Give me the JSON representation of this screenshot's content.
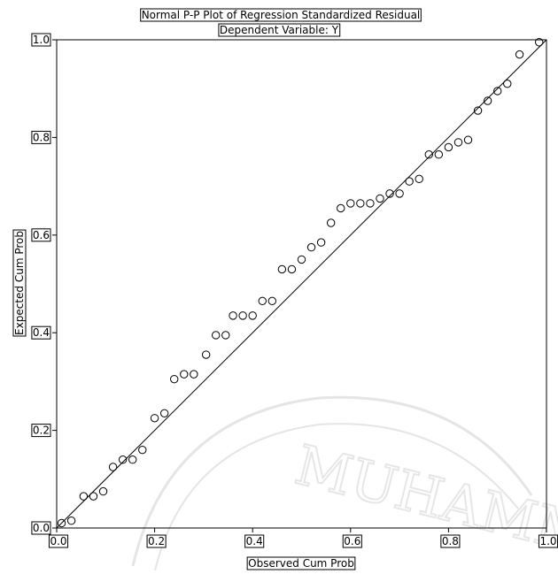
{
  "chart_data": {
    "type": "scatter",
    "title": "Normal P-P Plot of Regression Standardized Residual",
    "subtitle": "Dependent Variable: Y",
    "xlabel": "Observed Cum Prob",
    "ylabel": "Expected Cum Prob",
    "xlim": [
      0,
      1
    ],
    "ylim": [
      0,
      1
    ],
    "x_ticks": [
      "0.0",
      "0.2",
      "0.4",
      "0.6",
      "0.8",
      "1.0"
    ],
    "y_ticks": [
      "0.0",
      "0.2",
      "0.4",
      "0.6",
      "0.8",
      "1.0"
    ],
    "grid": false,
    "reference_line": [
      [
        0,
        0
      ],
      [
        1,
        1
      ]
    ],
    "points": [
      [
        0.01,
        0.01
      ],
      [
        0.03,
        0.015
      ],
      [
        0.055,
        0.065
      ],
      [
        0.075,
        0.065
      ],
      [
        0.095,
        0.075
      ],
      [
        0.115,
        0.125
      ],
      [
        0.135,
        0.14
      ],
      [
        0.155,
        0.14
      ],
      [
        0.175,
        0.16
      ],
      [
        0.2,
        0.225
      ],
      [
        0.22,
        0.235
      ],
      [
        0.24,
        0.305
      ],
      [
        0.26,
        0.315
      ],
      [
        0.28,
        0.315
      ],
      [
        0.305,
        0.355
      ],
      [
        0.325,
        0.395
      ],
      [
        0.345,
        0.395
      ],
      [
        0.36,
        0.435
      ],
      [
        0.38,
        0.435
      ],
      [
        0.4,
        0.435
      ],
      [
        0.42,
        0.465
      ],
      [
        0.44,
        0.465
      ],
      [
        0.46,
        0.53
      ],
      [
        0.48,
        0.53
      ],
      [
        0.5,
        0.55
      ],
      [
        0.52,
        0.575
      ],
      [
        0.54,
        0.585
      ],
      [
        0.56,
        0.625
      ],
      [
        0.58,
        0.655
      ],
      [
        0.6,
        0.665
      ],
      [
        0.62,
        0.665
      ],
      [
        0.64,
        0.665
      ],
      [
        0.66,
        0.675
      ],
      [
        0.68,
        0.685
      ],
      [
        0.7,
        0.685
      ],
      [
        0.72,
        0.71
      ],
      [
        0.74,
        0.715
      ],
      [
        0.76,
        0.765
      ],
      [
        0.78,
        0.765
      ],
      [
        0.8,
        0.78
      ],
      [
        0.82,
        0.79
      ],
      [
        0.84,
        0.795
      ],
      [
        0.86,
        0.855
      ],
      [
        0.88,
        0.875
      ],
      [
        0.9,
        0.895
      ],
      [
        0.92,
        0.91
      ],
      [
        0.945,
        0.97
      ],
      [
        0.985,
        0.995
      ]
    ]
  },
  "watermark": {
    "text": "MUHAMMA"
  }
}
